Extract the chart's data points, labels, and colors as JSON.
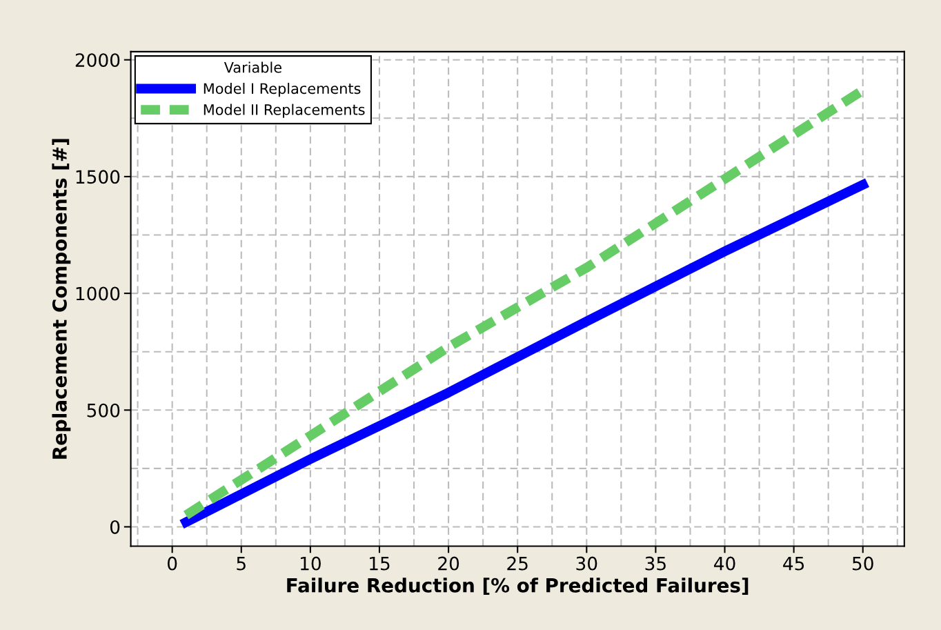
{
  "chart_data": {
    "type": "line",
    "xlabel": "Failure Reduction [% of Predicted Failures]",
    "ylabel": "Replacement Components [#]",
    "legend_title": "Variable",
    "x": [
      1,
      10,
      20,
      30,
      40,
      50
    ],
    "series": [
      {
        "name": "Model I Replacements",
        "color": "#0000ff",
        "values": [
          20,
          290,
          575,
          880,
          1180,
          1465
        ],
        "line_style": "solid"
      },
      {
        "name": "Model II Replacements",
        "color": "#66cc66",
        "values": [
          50,
          390,
          770,
          1110,
          1490,
          1870
        ],
        "line_style": "dashed"
      }
    ],
    "xlim": [
      -3,
      53
    ],
    "ylim": [
      -83,
      2035
    ],
    "xticks": [
      0,
      5,
      10,
      15,
      20,
      25,
      30,
      35,
      40,
      45,
      50
    ],
    "yticks": [
      0,
      500,
      1000,
      1500,
      2000
    ],
    "grid": true,
    "legend": "top left",
    "marker": "none"
  }
}
